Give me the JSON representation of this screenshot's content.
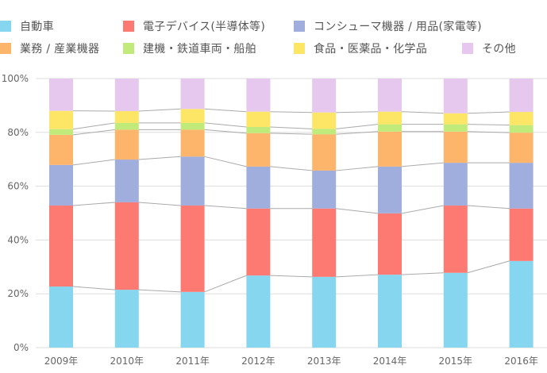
{
  "chart_data": {
    "type": "bar",
    "stacked": true,
    "normalized": true,
    "title": "",
    "xlabel": "",
    "ylabel": "",
    "ylim": [
      0,
      100
    ],
    "yticks": [
      "0%",
      "20%",
      "40%",
      "60%",
      "80%",
      "100%"
    ],
    "ytick_values": [
      0,
      20,
      40,
      60,
      80,
      100
    ],
    "grid": true,
    "legend_position": "top",
    "categories": [
      "2009年",
      "2010年",
      "2011年",
      "2012年",
      "2013年",
      "2014年",
      "2015年",
      "2016年"
    ],
    "series": [
      {
        "name": "自動車",
        "color": "#86d6ef",
        "values": [
          22.7,
          21.5,
          20.7,
          26.8,
          26.3,
          27.1,
          27.8,
          32.2
        ]
      },
      {
        "name": "電子デバイス(半導体等)",
        "color": "#fd7a72",
        "values": [
          30.1,
          32.5,
          32.1,
          24.9,
          25.4,
          22.8,
          25.0,
          19.5
        ]
      },
      {
        "name": "コンシューマ機器 / 用品(家電等)",
        "color": "#a0aede",
        "values": [
          15.1,
          15.9,
          18.2,
          15.6,
          14.1,
          17.4,
          15.9,
          17.0
        ]
      },
      {
        "name": "業務 / 産業機器",
        "color": "#fdb56b",
        "values": [
          11.2,
          11.1,
          10.0,
          12.4,
          13.5,
          13.0,
          11.6,
          11.2
        ]
      },
      {
        "name": "建機・鉄道車両・船舶",
        "color": "#c0ea7a",
        "values": [
          2.1,
          2.5,
          2.5,
          2.3,
          2.0,
          2.7,
          2.7,
          2.8
        ]
      },
      {
        "name": "食品・医薬品・化学品",
        "color": "#fde566",
        "values": [
          6.8,
          4.4,
          5.2,
          5.7,
          6.1,
          4.7,
          4.1,
          4.9
        ]
      },
      {
        "name": "その他",
        "color": "#e6c8ee",
        "values": [
          12.0,
          12.1,
          11.3,
          12.3,
          12.6,
          12.3,
          12.9,
          12.4
        ]
      }
    ],
    "connector_lines": true
  }
}
